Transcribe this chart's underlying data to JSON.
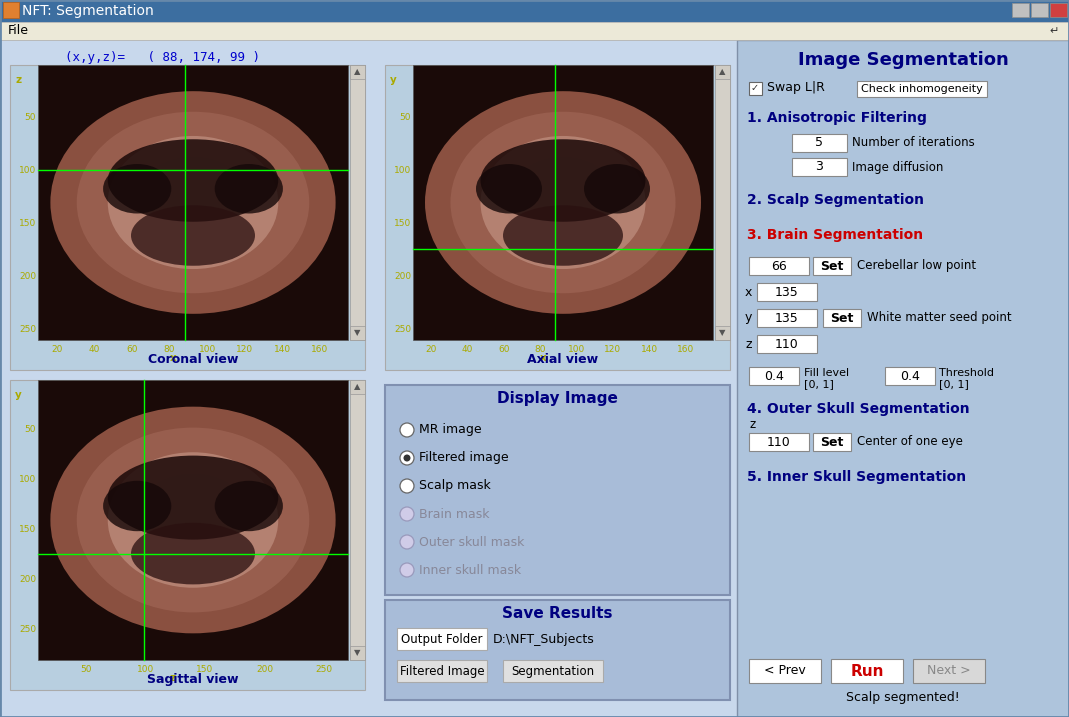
{
  "title": "NFT: Segmentation",
  "menubar": "File",
  "coord_text": "(x,y,z)=   ( 88, 174, 99 )",
  "bg_color": "#c8d8ec",
  "panel_bg": "#b8cfe0",
  "dark_bg": "#1a0a08",
  "right_panel_bg": "#aec4dc",
  "coronal_label": "Coronal view",
  "axial_label": "Axial view",
  "sagittal_label": "Sagittal view",
  "right_panel_title": "Image Segmentation",
  "section1": "1. Anisotropic Filtering",
  "section2": "2. Scalp Segmentation",
  "section3": "3. Brain Segmentation",
  "section4": "4. Outer Skull Segmentation",
  "section5": "5. Inner Skull Segmentation",
  "iter_val": "5",
  "diffusion_val": "3",
  "cereb_low": "66",
  "x_seed": "135",
  "y_seed": "135",
  "z_seed": "110",
  "fill_level": "0.4",
  "threshold": "0.4",
  "z_eye": "110",
  "status_text": "Scalp segmented!",
  "coord_color": "#0000cc",
  "section_color": "#000080",
  "brain_seg_color": "#cc0000",
  "run_color": "#cc0000",
  "green_line": "#00ff00",
  "tick_color": "#aaaa00",
  "view_label_color": "#000080",
  "titlebar_bg": "#3c6ea0",
  "menubar_bg": "#ece9d8",
  "scrollbar_bg": "#d4d0c8",
  "display_panel_bg": "#a8bcd8",
  "save_panel_bg": "#a8bcd8",
  "radio_active": "Filtered image",
  "radio_options": [
    "MR image",
    "Filtered image",
    "Scalp mask",
    "Brain mask",
    "Outer skull mask",
    "Inner skull mask"
  ],
  "radio_disabled": [
    "Brain mask",
    "Outer skull mask",
    "Inner skull mask"
  ]
}
